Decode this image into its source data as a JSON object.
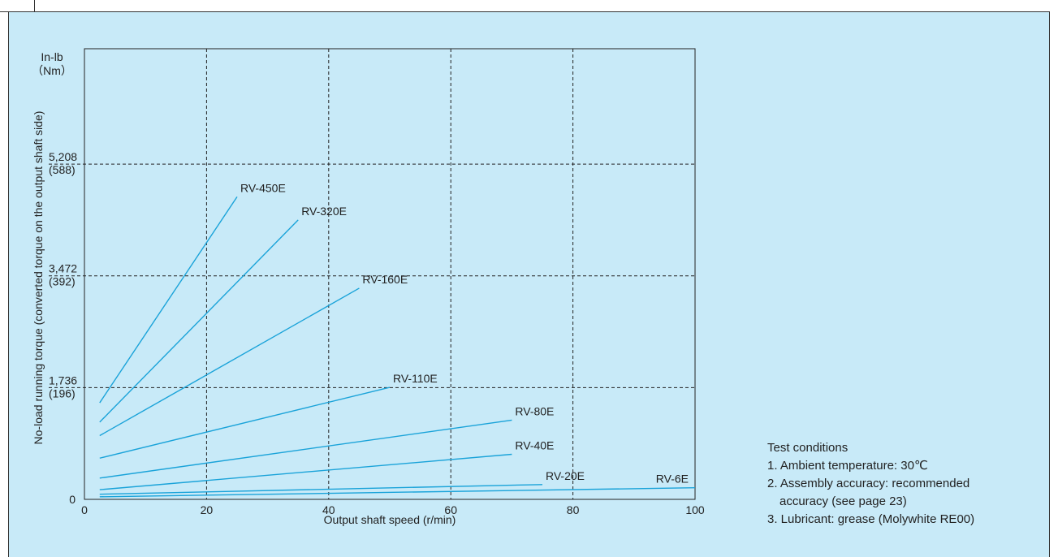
{
  "chart_data": {
    "type": "line",
    "title": "",
    "xlabel": "Output shaft speed (r/min)",
    "ylabel": "No-load running torque (converted torque on the output shaft side)",
    "y_unit_line1": "In-lb",
    "y_unit_line2": "（Nm）",
    "xlim": [
      0,
      100
    ],
    "ylim": [
      0,
      7000
    ],
    "x_ticks": [
      {
        "value": 0,
        "label": "0"
      },
      {
        "value": 20,
        "label": "20"
      },
      {
        "value": 40,
        "label": "40"
      },
      {
        "value": 60,
        "label": "60"
      },
      {
        "value": 80,
        "label": "80"
      },
      {
        "value": 100,
        "label": "100"
      }
    ],
    "y_ticks": [
      {
        "value": 0,
        "label": "0",
        "sublabel": ""
      },
      {
        "value": 1736,
        "label": "1,736",
        "sublabel": "(196)"
      },
      {
        "value": 3472,
        "label": "3,472",
        "sublabel": "(392)"
      },
      {
        "value": 5208,
        "label": "5,208",
        "sublabel": "(588)"
      }
    ],
    "grid": true,
    "series": [
      {
        "name": "RV-450E",
        "x": [
          2.5,
          25
        ],
        "y": [
          1500,
          4700
        ]
      },
      {
        "name": "RV-320E",
        "x": [
          2.5,
          35
        ],
        "y": [
          1200,
          4340
        ]
      },
      {
        "name": "RV-160E",
        "x": [
          2.5,
          45
        ],
        "y": [
          990,
          3280
        ]
      },
      {
        "name": "RV-110E",
        "x": [
          2.5,
          50
        ],
        "y": [
          640,
          1740
        ]
      },
      {
        "name": "RV-80E",
        "x": [
          2.5,
          70
        ],
        "y": [
          330,
          1230
        ]
      },
      {
        "name": "RV-40E",
        "x": [
          2.5,
          70
        ],
        "y": [
          150,
          700
        ]
      },
      {
        "name": "RV-20E",
        "x": [
          2.5,
          75
        ],
        "y": [
          80,
          230
        ]
      },
      {
        "name": "RV-6E",
        "x": [
          2.5,
          100
        ],
        "y": [
          40,
          180
        ]
      }
    ]
  },
  "notes": {
    "heading": "Test conditions",
    "item1": "1. Ambient temperature: 30℃",
    "item2_line1": "2. Assembly accuracy: recommended",
    "item2_line2": "accuracy (see page 23)",
    "item3": "3. Lubricant: grease (Molywhite RE00)"
  },
  "colors": {
    "series": "#1aa3d9",
    "background": "#c8eaf8",
    "grid": "#222222"
  }
}
